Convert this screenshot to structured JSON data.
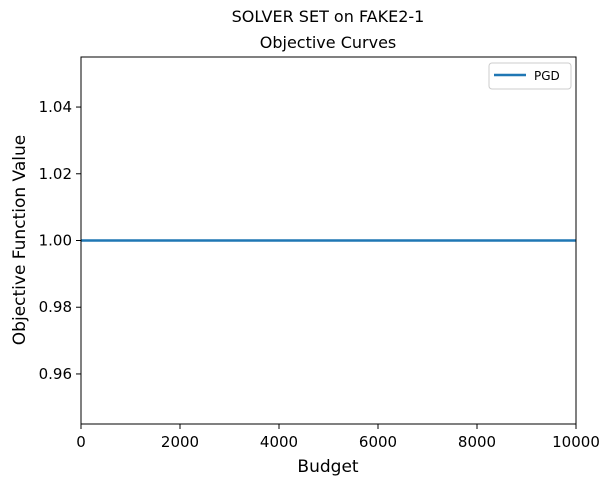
{
  "chart_data": {
    "type": "line",
    "title": [
      "SOLVER SET on FAKE2-1",
      "Objective Curves"
    ],
    "xlabel": "Budget",
    "ylabel": "Objective Function Value",
    "xlim": [
      0,
      10000
    ],
    "ylim": [
      0.945,
      1.055
    ],
    "xticks": [
      0,
      2000,
      4000,
      6000,
      8000,
      10000
    ],
    "xtick_labels": [
      "0",
      "2000",
      "4000",
      "6000",
      "8000",
      "10000"
    ],
    "yticks": [
      0.96,
      0.98,
      1.0,
      1.02,
      1.04
    ],
    "ytick_labels": [
      "0.96",
      "0.98",
      "1.00",
      "1.02",
      "1.04"
    ],
    "grid": false,
    "legend_position": "top-right",
    "series": [
      {
        "name": "PGD",
        "color": "#1f77b4",
        "x": [
          0,
          10000
        ],
        "y": [
          1.0,
          1.0
        ]
      }
    ]
  }
}
